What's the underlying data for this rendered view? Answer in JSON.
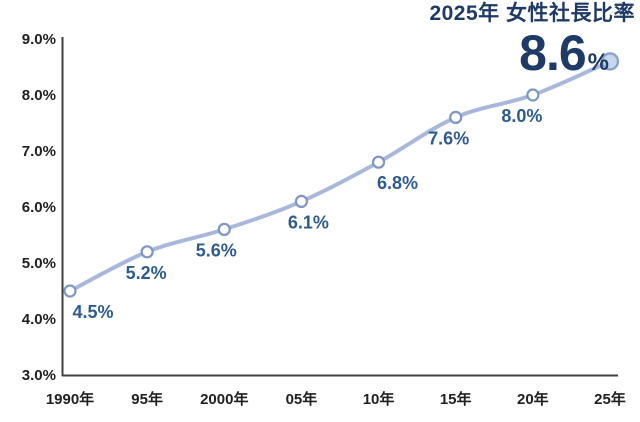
{
  "header": {
    "title": "2025年 女性社長比率",
    "big_value": "8.6",
    "big_unit": "%"
  },
  "chart_data": {
    "type": "line",
    "title": "2025年 女性社長比率",
    "categories": [
      "1990年",
      "95年",
      "2000年",
      "05年",
      "10年",
      "15年",
      "20年",
      "25年"
    ],
    "values": [
      4.5,
      5.2,
      5.6,
      6.1,
      6.8,
      7.6,
      8.0,
      8.6
    ],
    "point_labels": [
      "4.5%",
      "5.2%",
      "5.6%",
      "6.1%",
      "6.8%",
      "7.6%",
      "8.0%",
      ""
    ],
    "end_point_label": "8.6%",
    "yticks": [
      "9.0%",
      "8.0%",
      "7.0%",
      "6.0%",
      "5.0%",
      "4.0%",
      "3.0%"
    ],
    "ylim": [
      3.0,
      9.0
    ],
    "xlabel": "",
    "ylabel": "",
    "grid": false,
    "legend": false,
    "smooth_line": true,
    "colors": {
      "line": "#a7b8dc",
      "marker_fill": "#ffffff",
      "marker_stroke": "#7e96c6",
      "end_marker_fill": "#c7d7eb",
      "end_marker_stroke": "#8aa3cc",
      "point_label": "#2e5c8f",
      "title": "#1e3a66",
      "axis": "#404040",
      "tick_text": "#212121"
    },
    "layout_hints": {
      "label_dx": [
        23,
        -1,
        -8,
        7,
        19,
        -7,
        -11,
        0
      ],
      "legend_position": "none"
    }
  }
}
